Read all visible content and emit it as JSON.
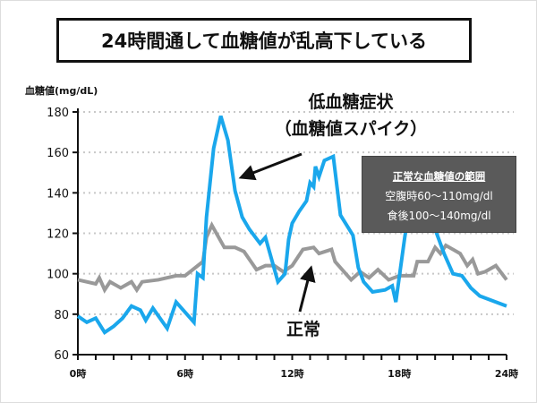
{
  "title": "24時間通して血糖値が乱高下している",
  "chart_data": {
    "type": "line",
    "ylabel": "血糖値(mg/dL)",
    "xlabel": "",
    "ylim": [
      60,
      180
    ],
    "xlim": [
      0,
      24
    ],
    "yticks": [
      60,
      80,
      100,
      120,
      140,
      160,
      180
    ],
    "xtick_labels": [
      {
        "x": 0,
        "label": "0時"
      },
      {
        "x": 6,
        "label": "6時"
      },
      {
        "x": 12,
        "label": "12時"
      },
      {
        "x": 18,
        "label": "18時"
      },
      {
        "x": 24,
        "label": "24時"
      }
    ],
    "grid": "horizontal dotted",
    "series": [
      {
        "name": "正常",
        "color": "#999999",
        "x": [
          0,
          1,
          1.2,
          1.5,
          1.8,
          2.4,
          3,
          3.3,
          3.6,
          4.5,
          5.5,
          6,
          7,
          7.2,
          7.5,
          8.2,
          8.8,
          9.3,
          10,
          10.5,
          11,
          11.5,
          12,
          12.6,
          13.2,
          13.5,
          14.2,
          14.4,
          15.3,
          15.8,
          16.3,
          16.8,
          17.4,
          18,
          18.8,
          19,
          19.6,
          20,
          20.3,
          20.6,
          21,
          21.4,
          21.8,
          22.1,
          22.4,
          22.8,
          23.4,
          24
        ],
        "y": [
          97,
          95,
          98,
          92,
          96,
          93,
          96,
          92,
          96,
          97,
          99,
          99,
          106,
          118,
          124,
          113,
          113,
          111,
          102,
          104,
          104,
          101,
          104,
          112,
          113,
          110,
          112,
          106,
          97,
          101,
          98,
          102,
          97,
          99,
          99,
          106,
          106,
          113,
          110,
          114,
          112,
          110,
          104,
          107,
          100,
          101,
          104,
          97
        ]
      },
      {
        "name": "低血糖症状（血糖値スパイク）",
        "color": "#1aa7ec",
        "x": [
          0,
          0.5,
          1,
          1.5,
          2,
          2.5,
          3,
          3.5,
          3.8,
          4.2,
          5,
          5.5,
          6,
          6.5,
          6.7,
          7,
          7.2,
          7.6,
          8,
          8.4,
          8.8,
          9.2,
          9.6,
          10.2,
          10.5,
          11.2,
          11.6,
          11.8,
          12,
          12.4,
          12.8,
          13,
          13.2,
          13.3,
          13.5,
          13.8,
          14.3,
          14.7,
          15.4,
          15.7,
          16,
          16.5,
          17.2,
          17.6,
          17.8,
          18.3,
          18.6,
          19.5,
          20,
          20.5,
          21,
          21.5,
          22,
          22.5,
          24
        ],
        "y": [
          79,
          76,
          78,
          71,
          74,
          78,
          84,
          82,
          77,
          83,
          73,
          86,
          81,
          76,
          100,
          98,
          128,
          162,
          178,
          166,
          141,
          128,
          122,
          115,
          118,
          96,
          100,
          117,
          125,
          131,
          136,
          145,
          143,
          153,
          148,
          156,
          158,
          129,
          119,
          103,
          96,
          91,
          92,
          94,
          86,
          118,
          135,
          130,
          122,
          110,
          100,
          99,
          93,
          89,
          84
        ]
      }
    ],
    "annotations": [
      {
        "text": "低血糖症状",
        "text2": "（血糖値スパイク）"
      },
      {
        "text": "正常"
      }
    ],
    "info_box": {
      "heading": "正常な血糖値の範囲",
      "lines": [
        "空腹時60〜110mg/dl",
        "食後100〜140mg/dl"
      ]
    }
  }
}
